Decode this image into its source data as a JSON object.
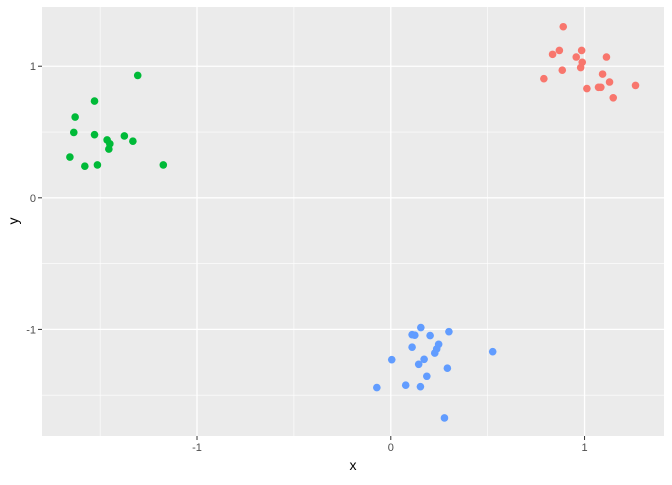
{
  "chart_data": {
    "type": "scatter",
    "title": "",
    "xlabel": "x",
    "ylabel": "y",
    "xlim": [
      -1.8,
      1.41
    ],
    "ylim": [
      -1.81,
      1.45
    ],
    "x_ticks": [
      -1,
      0,
      1
    ],
    "y_ticks": [
      -1,
      0,
      1
    ],
    "x_tick_labels": [
      "-1",
      "0",
      "1"
    ],
    "y_tick_labels": [
      "-1",
      "0",
      "1"
    ],
    "x_minor": [
      -1.5,
      -0.5,
      0.5
    ],
    "y_minor": [
      -1.5,
      -0.5,
      0.5
    ],
    "grid": true,
    "legend": "none",
    "panel_background": "#EBEBEB",
    "series": [
      {
        "color": "#F8766D",
        "points": [
          [
            0.89,
            1.3
          ],
          [
            0.87,
            1.12
          ],
          [
            0.835,
            1.09
          ],
          [
            0.985,
            1.12
          ],
          [
            0.957,
            1.07
          ],
          [
            0.988,
            1.03
          ],
          [
            0.98,
            0.99
          ],
          [
            0.885,
            0.97
          ],
          [
            1.113,
            1.07
          ],
          [
            1.093,
            0.94
          ],
          [
            0.79,
            0.905
          ],
          [
            1.129,
            0.88
          ],
          [
            1.012,
            0.83
          ],
          [
            1.072,
            0.84
          ],
          [
            1.084,
            0.84
          ],
          [
            1.263,
            0.854
          ],
          [
            1.148,
            0.76
          ]
        ]
      },
      {
        "color": "#00BA38",
        "points": [
          [
            -1.306,
            0.93
          ],
          [
            -1.529,
            0.735
          ],
          [
            -1.629,
            0.614
          ],
          [
            -1.636,
            0.497
          ],
          [
            -1.529,
            0.48
          ],
          [
            -1.464,
            0.44
          ],
          [
            -1.45,
            0.41
          ],
          [
            -1.455,
            0.37
          ],
          [
            -1.375,
            0.47
          ],
          [
            -1.331,
            0.43
          ],
          [
            -1.656,
            0.31
          ],
          [
            -1.579,
            0.24
          ],
          [
            -1.514,
            0.25
          ],
          [
            -1.174,
            0.25
          ]
        ]
      },
      {
        "color": "#619CFF",
        "points": [
          [
            0.155,
            -0.986
          ],
          [
            0.11,
            -1.04
          ],
          [
            0.124,
            -1.044
          ],
          [
            0.203,
            -1.047
          ],
          [
            0.3,
            -1.017
          ],
          [
            0.247,
            -1.113
          ],
          [
            0.237,
            -1.148
          ],
          [
            0.227,
            -1.18
          ],
          [
            0.11,
            -1.135
          ],
          [
            0.005,
            -1.23
          ],
          [
            0.172,
            -1.227
          ],
          [
            0.144,
            -1.265
          ],
          [
            0.292,
            -1.295
          ],
          [
            0.526,
            -1.169
          ],
          [
            0.186,
            -1.356
          ],
          [
            -0.072,
            -1.442
          ],
          [
            0.077,
            -1.424
          ],
          [
            0.153,
            -1.435
          ],
          [
            0.277,
            -1.673
          ]
        ]
      }
    ]
  }
}
